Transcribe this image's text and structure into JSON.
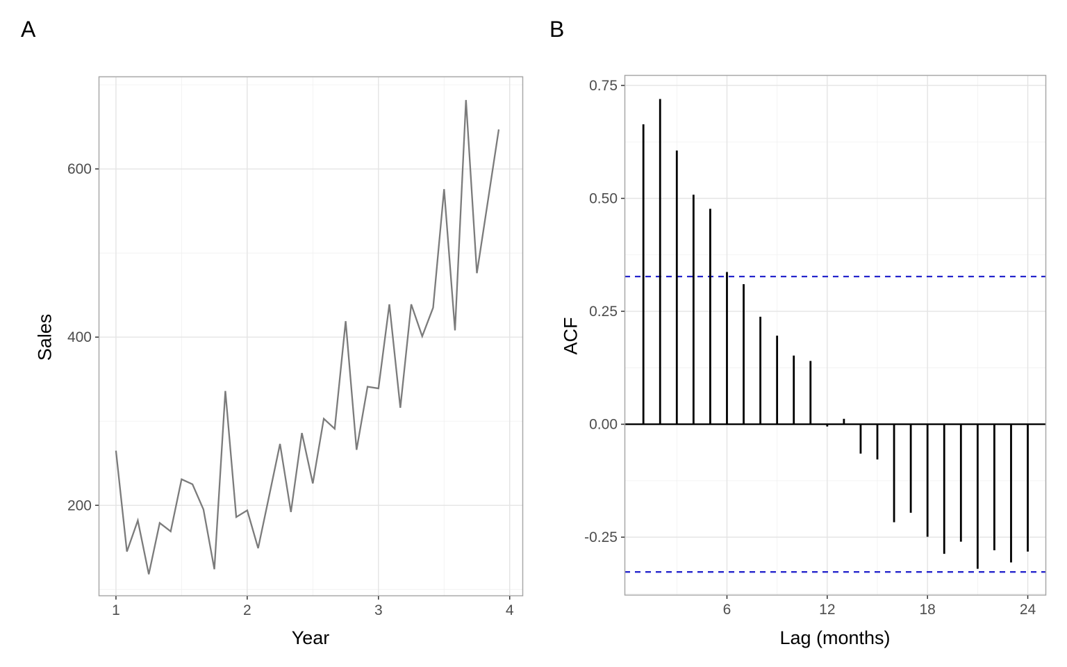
{
  "figure": {
    "description": "Two-panel time-series figure: monthly sales line plot and its autocorrelation function"
  },
  "chart_data": [
    {
      "id": "sales-series",
      "type": "line",
      "panel_label": "A",
      "xlabel": "Year",
      "ylabel": "Sales",
      "x_start": 1,
      "x_step_years": 0.0833333,
      "frequency": "monthly",
      "values": [
        265,
        145,
        182,
        118,
        179,
        169,
        231,
        225,
        195,
        124,
        336,
        186,
        194,
        149,
        211,
        273,
        192,
        286,
        226,
        303,
        291,
        419,
        266,
        341,
        339,
        439,
        316,
        439,
        401,
        435,
        576,
        408,
        682,
        476,
        561,
        647
      ],
      "xlim": [
        0.868,
        4.102
      ],
      "ylim": [
        92,
        710
      ],
      "x_ticks": [
        1,
        2,
        3,
        4
      ],
      "x_tick_labels": [
        "1",
        "2",
        "3",
        "4"
      ],
      "x_minor": [
        1.5,
        2.5,
        3.5
      ],
      "y_ticks": [
        200,
        400,
        600
      ],
      "y_tick_labels": [
        "200",
        "400",
        "600"
      ],
      "y_minor": [
        100,
        300,
        500,
        700
      ],
      "grid": true,
      "legend": "none",
      "line_color": "#7b7b7b",
      "tick_label_color": "#4d4d4d",
      "grid_major_color": "#e4e4e4",
      "grid_minor_color": "#f0f0f0",
      "panel_border_color": "#a8a8a8"
    },
    {
      "id": "acf",
      "type": "bar",
      "panel_label": "B",
      "xlabel": "Lag (months)",
      "ylabel": "ACF",
      "lags": [
        1,
        2,
        3,
        4,
        5,
        6,
        7,
        8,
        9,
        10,
        11,
        12,
        13,
        14,
        15,
        16,
        17,
        18,
        19,
        20,
        21,
        22,
        23,
        24
      ],
      "values": [
        0.664,
        0.72,
        0.606,
        0.508,
        0.477,
        0.337,
        0.31,
        0.238,
        0.196,
        0.152,
        0.14,
        -0.005,
        0.012,
        -0.065,
        -0.078,
        -0.217,
        -0.196,
        -0.249,
        -0.287,
        -0.26,
        -0.32,
        -0.279,
        -0.306,
        -0.282
      ],
      "confidence_band_upper": 0.327,
      "confidence_band_lower": -0.327,
      "xlim": [
        -0.13,
        25.1
      ],
      "ylim": [
        -0.379,
        0.773
      ],
      "x_ticks": [
        6,
        12,
        18,
        24
      ],
      "x_tick_labels": [
        "6",
        "12",
        "18",
        "24"
      ],
      "x_minor": [
        3,
        9,
        15,
        21
      ],
      "y_ticks": [
        0.75,
        0.5,
        0.25,
        0.0,
        -0.25
      ],
      "y_tick_labels": [
        "0.75",
        "0.50",
        "0.25",
        "0.00",
        "-0.25"
      ],
      "y_minor": [
        0.625,
        0.375,
        0.125,
        -0.125,
        -0.375
      ],
      "grid": true,
      "legend": "none",
      "bar_color": "#000000",
      "zero_line_color": "#000000",
      "band_color": "#2525cc",
      "tick_label_color": "#4d4d4d",
      "grid_major_color": "#e4e4e4",
      "grid_minor_color": "#f0f0f0",
      "panel_border_color": "#a8a8a8"
    }
  ]
}
